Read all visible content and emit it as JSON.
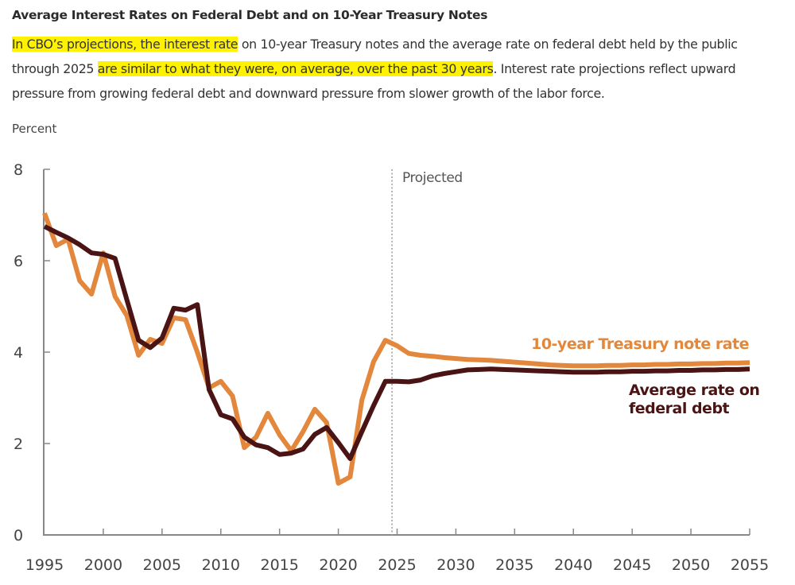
{
  "header": {
    "title": "Average Interest Rates on Federal Debt and on 10-Year Treasury Notes",
    "description_parts": [
      {
        "text": "In CBO’s projections, the interest rate",
        "highlight": true
      },
      {
        "text": " on 10-year Treasury notes and the average rate on federal debt held by the public through 2025 ",
        "highlight": false
      },
      {
        "text": "are similar to what they were, on average, over the past 30 years",
        "highlight": true
      },
      {
        "text": ". Interest rate projections reflect upward pressure from growing federal debt and downward pressure from slower growth of the labor force.",
        "highlight": false
      }
    ]
  },
  "colors": {
    "treasury": "#e2873c",
    "debt": "#4a1414",
    "highlight": "#fff200",
    "axis": "#888888"
  },
  "chart_data": {
    "type": "line",
    "title": "Average Interest Rates on Federal Debt and on 10-Year Treasury Notes",
    "ylabel": "Percent",
    "xlabel": "",
    "xlim": [
      1995,
      2055
    ],
    "ylim": [
      0,
      8
    ],
    "yticks": [
      0,
      2,
      4,
      6,
      8
    ],
    "xticks": [
      1995,
      2000,
      2005,
      2010,
      2015,
      2020,
      2025,
      2030,
      2035,
      2040,
      2045,
      2050,
      2055
    ],
    "grid": false,
    "annotation": {
      "text": "Projected",
      "divider_year": 2024.5
    },
    "x": [
      1995,
      1996,
      1997,
      1998,
      1999,
      2000,
      2001,
      2002,
      2003,
      2004,
      2005,
      2006,
      2007,
      2008,
      2009,
      2010,
      2011,
      2012,
      2013,
      2014,
      2015,
      2016,
      2017,
      2018,
      2019,
      2020,
      2021,
      2022,
      2023,
      2024,
      2025,
      2026,
      2027,
      2028,
      2029,
      2030,
      2031,
      2032,
      2033,
      2034,
      2035,
      2036,
      2037,
      2038,
      2039,
      2040,
      2041,
      2042,
      2043,
      2044,
      2045,
      2046,
      2047,
      2048,
      2049,
      2050,
      2051,
      2052,
      2053,
      2054,
      2055
    ],
    "series": [
      {
        "name": "10-year Treasury note rate",
        "label_lines": [
          "10-year Treasury note rate"
        ],
        "color": "#e2873c",
        "values": [
          7.04,
          6.33,
          6.47,
          5.56,
          5.27,
          6.17,
          5.22,
          4.8,
          3.93,
          4.28,
          4.19,
          4.75,
          4.71,
          4.0,
          3.22,
          3.36,
          3.04,
          1.91,
          2.14,
          2.66,
          2.19,
          1.84,
          2.26,
          2.75,
          2.46,
          1.13,
          1.27,
          2.95,
          3.79,
          4.26,
          4.14,
          3.97,
          3.93,
          3.91,
          3.88,
          3.86,
          3.84,
          3.83,
          3.82,
          3.8,
          3.78,
          3.76,
          3.74,
          3.72,
          3.71,
          3.7,
          3.7,
          3.7,
          3.71,
          3.71,
          3.72,
          3.72,
          3.73,
          3.73,
          3.74,
          3.74,
          3.75,
          3.75,
          3.76,
          3.76,
          3.77
        ]
      },
      {
        "name": "Average rate on federal debt",
        "label_lines": [
          "Average rate on",
          "federal debt"
        ],
        "color": "#4a1414",
        "values": [
          6.75,
          6.62,
          6.5,
          6.35,
          6.17,
          6.14,
          6.05,
          5.15,
          4.26,
          4.1,
          4.31,
          4.96,
          4.92,
          5.04,
          3.18,
          2.63,
          2.54,
          2.14,
          1.97,
          1.91,
          1.76,
          1.79,
          1.88,
          2.2,
          2.35,
          2.02,
          1.67,
          2.26,
          2.83,
          3.36,
          3.36,
          3.35,
          3.39,
          3.48,
          3.53,
          3.57,
          3.61,
          3.62,
          3.63,
          3.62,
          3.61,
          3.6,
          3.59,
          3.58,
          3.57,
          3.56,
          3.56,
          3.56,
          3.57,
          3.57,
          3.58,
          3.58,
          3.59,
          3.59,
          3.6,
          3.6,
          3.61,
          3.61,
          3.62,
          3.62,
          3.63
        ]
      }
    ]
  }
}
